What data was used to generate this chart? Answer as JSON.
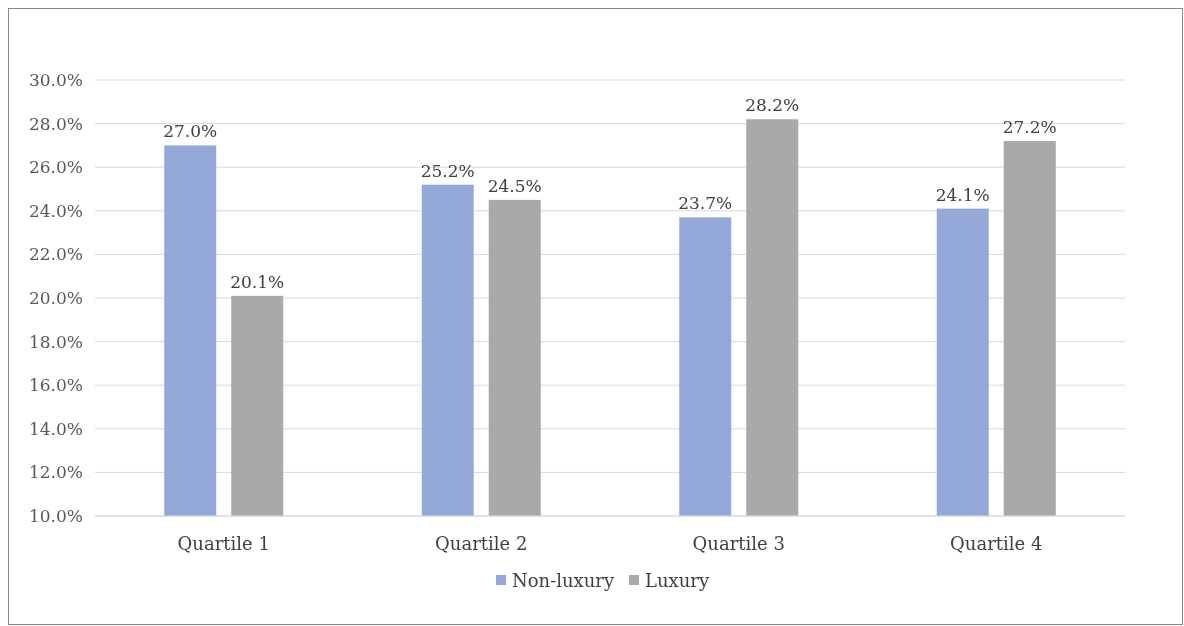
{
  "chart_data": {
    "type": "bar",
    "categories": [
      "Quartile 1",
      "Quartile 2",
      "Quartile 3",
      "Quartile 4"
    ],
    "series": [
      {
        "name": "Non-luxury",
        "color": "#95a9d8",
        "values": [
          27.0,
          25.2,
          23.7,
          24.1
        ],
        "value_labels": [
          "27.0%",
          "25.2%",
          "23.7%",
          "24.1%"
        ]
      },
      {
        "name": "Luxury",
        "color": "#a9a9a9",
        "values": [
          20.1,
          24.5,
          28.2,
          27.2
        ],
        "value_labels": [
          "20.1%",
          "24.5%",
          "28.2%",
          "27.2%"
        ]
      }
    ],
    "ylim": [
      10,
      30
    ],
    "yticks": [
      {
        "value": 10,
        "label": "10.0%"
      },
      {
        "value": 12,
        "label": "12.0%"
      },
      {
        "value": 14,
        "label": "14.0%"
      },
      {
        "value": 16,
        "label": "16.0%"
      },
      {
        "value": 18,
        "label": "18.0%"
      },
      {
        "value": 20,
        "label": "20.0%"
      },
      {
        "value": 22,
        "label": "22.0%"
      },
      {
        "value": 24,
        "label": "24.0%"
      },
      {
        "value": 26,
        "label": "26.0%"
      },
      {
        "value": 28,
        "label": "28.0%"
      },
      {
        "value": 30,
        "label": "30.0%"
      }
    ],
    "grid": "y",
    "legend": "bottom"
  }
}
